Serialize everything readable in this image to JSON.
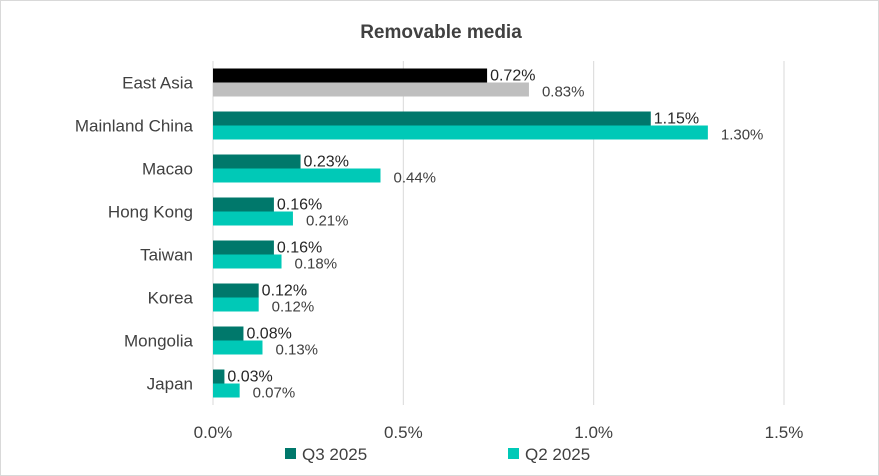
{
  "chart_data": {
    "type": "bar",
    "orientation": "horizontal",
    "title": "Removable media",
    "categories": [
      "East Asia",
      "Mainland China",
      "Macao",
      "Hong Kong",
      "Taiwan",
      "Korea",
      "Mongolia",
      "Japan"
    ],
    "series": [
      {
        "name": "Q3 2025",
        "color": "#00786b",
        "values": [
          0.72,
          1.15,
          0.23,
          0.16,
          0.16,
          0.12,
          0.08,
          0.03
        ],
        "labels": [
          "0.72%",
          "1.15%",
          "0.23%",
          "0.16%",
          "0.16%",
          "0.12%",
          "0.08%",
          "0.03%"
        ]
      },
      {
        "name": "Q2 2025",
        "color": "#00c9b7",
        "values": [
          0.83,
          1.3,
          0.44,
          0.21,
          0.18,
          0.12,
          0.13,
          0.07
        ],
        "labels": [
          "0.83%",
          "1.30%",
          "0.44%",
          "0.21%",
          "0.18%",
          "0.12%",
          "0.13%",
          "0.07%"
        ]
      }
    ],
    "highlight": {
      "category": "East Asia",
      "colors": [
        "#000000",
        "#bfbfbf"
      ]
    },
    "xticks": [
      0,
      0.5,
      1.0,
      1.5
    ],
    "xtick_labels": [
      "0.0%",
      "0.5%",
      "1.0%",
      "1.5%"
    ],
    "xlim": [
      0,
      1.5
    ],
    "xlabel": "",
    "ylabel": "",
    "grid": "vertical",
    "legend_position": "bottom"
  }
}
